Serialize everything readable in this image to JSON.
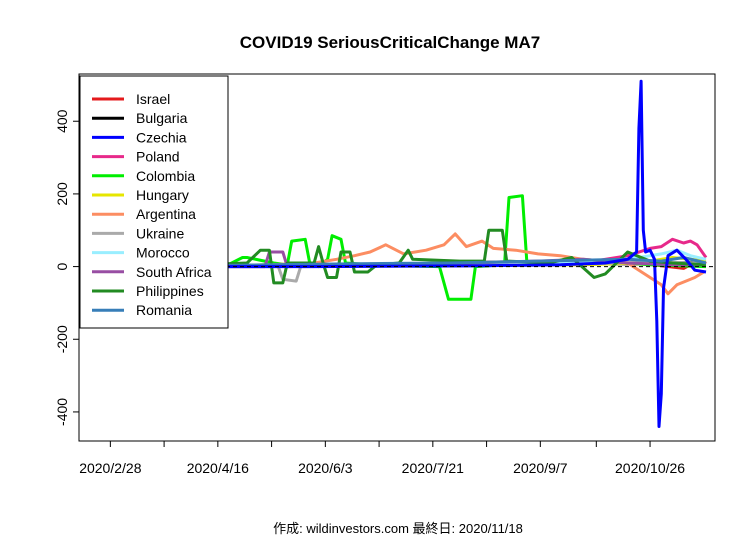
{
  "chart_data": {
    "type": "line",
    "title": "COVID19 SeriousCriticalChange MA7",
    "caption": "作成: wildinvestors.com 最終日: 2020/11/18",
    "x_start": "2020-02-19",
    "x_end": "2020-11-18",
    "xlim": [
      "2020-02-14",
      "2020-11-24"
    ],
    "ylim": [
      -480,
      530
    ],
    "x_ticks": [
      "2020-02-28",
      "2020-03-23",
      "2020-04-16",
      "2020-05-10",
      "2020-06-03",
      "2020-06-27",
      "2020-07-21",
      "2020-08-14",
      "2020-09-07",
      "2020-10-02",
      "2020-10-26"
    ],
    "x_tick_labels": [
      "2020/2/28",
      "",
      "2020/4/16",
      "",
      "2020/6/3",
      "",
      "2020/7/21",
      "",
      "2020/9/7",
      "",
      "2020/10/26"
    ],
    "y_ticks": [
      -400,
      -200,
      0,
      200,
      400
    ],
    "y_tick_labels": [
      "-400",
      "-200",
      "0",
      "200",
      "400"
    ],
    "zero_line": true,
    "grid": false,
    "legend_position": "top-left",
    "series": [
      {
        "name": "Israel",
        "color": "#e41a1c",
        "values": [
          [
            0,
            0
          ],
          [
            60,
            4
          ],
          [
            120,
            6
          ],
          [
            150,
            8
          ],
          [
            175,
            12
          ],
          [
            205,
            15
          ],
          [
            215,
            5
          ],
          [
            230,
            10
          ],
          [
            250,
            6
          ],
          [
            265,
            -5
          ],
          [
            272,
            18
          ],
          [
            275,
            8
          ]
        ]
      },
      {
        "name": "Bulgaria",
        "color": "#000000",
        "values": [
          [
            0,
            0
          ],
          [
            80,
            2
          ],
          [
            140,
            3
          ],
          [
            180,
            5
          ],
          [
            210,
            6
          ],
          [
            240,
            8
          ],
          [
            260,
            10
          ],
          [
            275,
            12
          ]
        ]
      },
      {
        "name": "Czechia",
        "color": "#0000ff",
        "values": [
          [
            0,
            0
          ],
          [
            19,
            0
          ],
          [
            20,
            30
          ],
          [
            21,
            -20
          ],
          [
            22,
            0
          ],
          [
            24,
            0
          ],
          [
            25,
            -30
          ],
          [
            26,
            10
          ],
          [
            27,
            0
          ],
          [
            52,
            0
          ],
          [
            53,
            25
          ],
          [
            54,
            5
          ],
          [
            55,
            0
          ],
          [
            56,
            -25
          ],
          [
            57,
            0
          ],
          [
            100,
            0
          ],
          [
            170,
            2
          ],
          [
            210,
            5
          ],
          [
            230,
            10
          ],
          [
            240,
            20
          ],
          [
            244,
            40
          ],
          [
            245,
            380
          ],
          [
            246,
            510
          ],
          [
            247,
            100
          ],
          [
            248,
            40
          ],
          [
            250,
            45
          ],
          [
            252,
            20
          ],
          [
            253,
            -150
          ],
          [
            254,
            -440
          ],
          [
            255,
            -350
          ],
          [
            256,
            -60
          ],
          [
            258,
            30
          ],
          [
            262,
            45
          ],
          [
            266,
            20
          ],
          [
            270,
            -10
          ],
          [
            275,
            -15
          ]
        ]
      },
      {
        "name": "Poland",
        "color": "#e7298a",
        "values": [
          [
            0,
            0
          ],
          [
            100,
            3
          ],
          [
            180,
            5
          ],
          [
            225,
            15
          ],
          [
            240,
            30
          ],
          [
            250,
            50
          ],
          [
            255,
            55
          ],
          [
            260,
            75
          ],
          [
            265,
            65
          ],
          [
            268,
            70
          ],
          [
            271,
            60
          ],
          [
            275,
            25
          ]
        ]
      },
      {
        "name": "Colombia",
        "color": "#00ee00",
        "values": [
          [
            0,
            0
          ],
          [
            60,
            0
          ],
          [
            68,
            25
          ],
          [
            70,
            25
          ],
          [
            82,
            10
          ],
          [
            88,
            5
          ],
          [
            90,
            70
          ],
          [
            96,
            75
          ],
          [
            98,
            10
          ],
          [
            102,
            0
          ],
          [
            106,
            20
          ],
          [
            108,
            85
          ],
          [
            112,
            75
          ],
          [
            114,
            10
          ],
          [
            126,
            5
          ],
          [
            140,
            2
          ],
          [
            156,
            0
          ],
          [
            160,
            -90
          ],
          [
            170,
            -90
          ],
          [
            172,
            0
          ],
          [
            185,
            5
          ],
          [
            187,
            190
          ],
          [
            193,
            195
          ],
          [
            195,
            10
          ],
          [
            210,
            5
          ],
          [
            225,
            15
          ],
          [
            240,
            10
          ],
          [
            250,
            5
          ],
          [
            275,
            0
          ]
        ]
      },
      {
        "name": "Hungary",
        "color": "#e6e600",
        "values": [
          [
            0,
            0
          ],
          [
            100,
            2
          ],
          [
            180,
            3
          ],
          [
            220,
            5
          ],
          [
            245,
            10
          ],
          [
            260,
            25
          ],
          [
            268,
            20
          ],
          [
            275,
            15
          ]
        ]
      },
      {
        "name": "Argentina",
        "color": "#fc8d62",
        "values": [
          [
            0,
            0
          ],
          [
            30,
            0
          ],
          [
            60,
            2
          ],
          [
            80,
            5
          ],
          [
            100,
            10
          ],
          [
            110,
            20
          ],
          [
            118,
            30
          ],
          [
            125,
            40
          ],
          [
            132,
            60
          ],
          [
            140,
            35
          ],
          [
            150,
            45
          ],
          [
            158,
            60
          ],
          [
            163,
            90
          ],
          [
            168,
            55
          ],
          [
            175,
            70
          ],
          [
            180,
            50
          ],
          [
            190,
            45
          ],
          [
            200,
            35
          ],
          [
            210,
            30
          ],
          [
            220,
            20
          ],
          [
            230,
            15
          ],
          [
            240,
            10
          ],
          [
            250,
            -30
          ],
          [
            255,
            -50
          ],
          [
            258,
            -75
          ],
          [
            262,
            -50
          ],
          [
            266,
            -40
          ],
          [
            270,
            -30
          ],
          [
            274,
            -15
          ]
        ]
      },
      {
        "name": "Ukraine",
        "color": "#aaaaaa",
        "values": [
          [
            0,
            0
          ],
          [
            60,
            0
          ],
          [
            84,
            0
          ],
          [
            86,
            -35
          ],
          [
            92,
            -40
          ],
          [
            94,
            0
          ],
          [
            140,
            2
          ],
          [
            180,
            5
          ],
          [
            220,
            8
          ],
          [
            250,
            12
          ],
          [
            275,
            10
          ]
        ]
      },
      {
        "name": "Morocco",
        "color": "#99eeff",
        "values": [
          [
            0,
            0
          ],
          [
            120,
            2
          ],
          [
            180,
            8
          ],
          [
            210,
            10
          ],
          [
            230,
            15
          ],
          [
            245,
            25
          ],
          [
            255,
            35
          ],
          [
            262,
            45
          ],
          [
            268,
            30
          ],
          [
            275,
            20
          ]
        ]
      },
      {
        "name": "South Africa",
        "color": "#984ea3",
        "values": [
          [
            0,
            0
          ],
          [
            30,
            -10
          ],
          [
            40,
            -5
          ],
          [
            60,
            0
          ],
          [
            78,
            0
          ],
          [
            80,
            40
          ],
          [
            86,
            40
          ],
          [
            88,
            0
          ],
          [
            130,
            5
          ],
          [
            170,
            10
          ],
          [
            200,
            15
          ],
          [
            220,
            20
          ],
          [
            240,
            10
          ],
          [
            260,
            5
          ],
          [
            275,
            5
          ]
        ]
      },
      {
        "name": "Philippines",
        "color": "#228b22",
        "values": [
          [
            0,
            0
          ],
          [
            30,
            5
          ],
          [
            50,
            5
          ],
          [
            70,
            10
          ],
          [
            76,
            45
          ],
          [
            80,
            45
          ],
          [
            82,
            -45
          ],
          [
            86,
            -45
          ],
          [
            88,
            10
          ],
          [
            100,
            10
          ],
          [
            102,
            55
          ],
          [
            104,
            10
          ],
          [
            106,
            -30
          ],
          [
            110,
            -30
          ],
          [
            112,
            40
          ],
          [
            116,
            40
          ],
          [
            118,
            -15
          ],
          [
            124,
            -15
          ],
          [
            128,
            5
          ],
          [
            138,
            10
          ],
          [
            142,
            45
          ],
          [
            144,
            20
          ],
          [
            165,
            15
          ],
          [
            176,
            15
          ],
          [
            178,
            100
          ],
          [
            184,
            100
          ],
          [
            186,
            15
          ],
          [
            205,
            10
          ],
          [
            215,
            25
          ],
          [
            225,
            -30
          ],
          [
            230,
            -20
          ],
          [
            240,
            40
          ],
          [
            250,
            15
          ],
          [
            260,
            10
          ],
          [
            275,
            5
          ]
        ]
      },
      {
        "name": "Romania",
        "color": "#377eb8",
        "values": [
          [
            0,
            0
          ],
          [
            40,
            2
          ],
          [
            80,
            5
          ],
          [
            120,
            8
          ],
          [
            160,
            10
          ],
          [
            200,
            15
          ],
          [
            240,
            20
          ],
          [
            255,
            15
          ],
          [
            265,
            25
          ],
          [
            275,
            10
          ]
        ]
      }
    ]
  }
}
